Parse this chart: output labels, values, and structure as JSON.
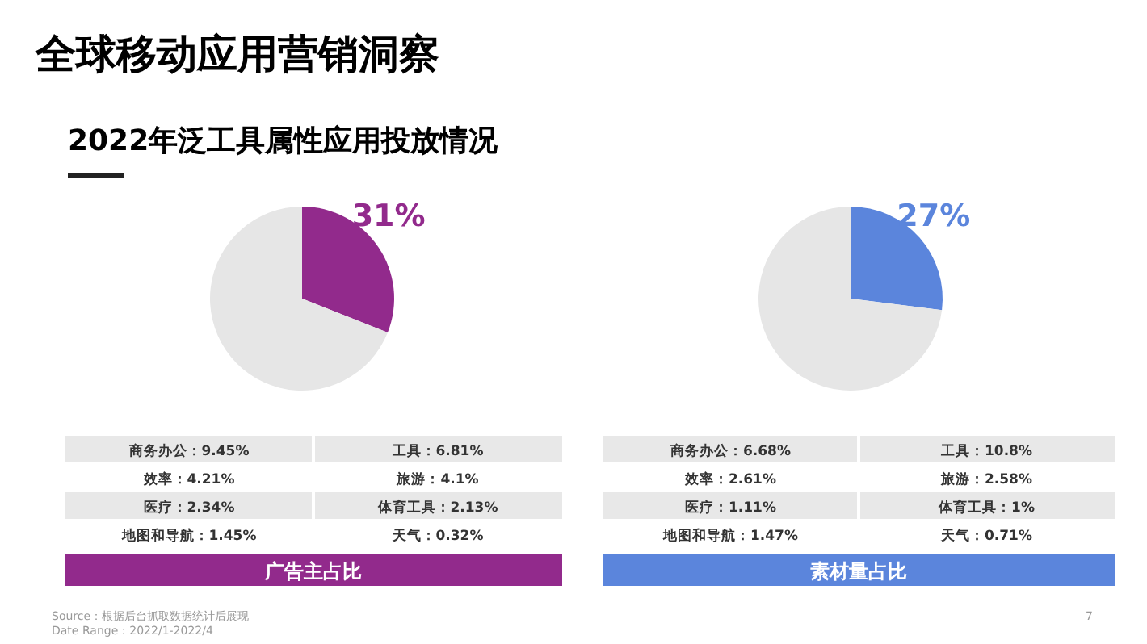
{
  "chart_data": [
    {
      "type": "pie",
      "title": "全球移动应用营销洞察",
      "subtitle": "2022年泛工具属性应用投放情况",
      "categories": [
        null,
        null
      ],
      "values": [
        31,
        69
      ],
      "colors": [
        "#922a8c",
        "#e6e6e6"
      ],
      "value_labels": [
        "31%",
        null
      ],
      "xlabel": "广告主占比",
      "annotations": [
        "商务办公：9.45%",
        "工具：6.81%",
        "效率：4.21%",
        "旅游：4.1%",
        "医疗：2.34%",
        "体育工具：2.13%",
        "地图和导航：1.45%",
        "天气：0.32%",
        "Source：根据后台抓取数据统计后展现",
        "Date Range：2022/1-2022/4",
        "7"
      ]
    },
    {
      "type": "pie",
      "categories": [
        null,
        null
      ],
      "values": [
        27,
        73
      ],
      "colors": [
        "#5b85dc",
        "#e6e6e6"
      ],
      "value_labels": [
        "27%",
        null
      ],
      "xlabel": "素材量占比",
      "annotations": [
        "商务办公：6.68%",
        "工具：10.8%",
        "效率：2.61%",
        "旅游：2.58%",
        "医疗：1.11%",
        "体育工具：1%",
        "地图和导航：1.47%",
        "天气：0.71%"
      ]
    }
  ]
}
